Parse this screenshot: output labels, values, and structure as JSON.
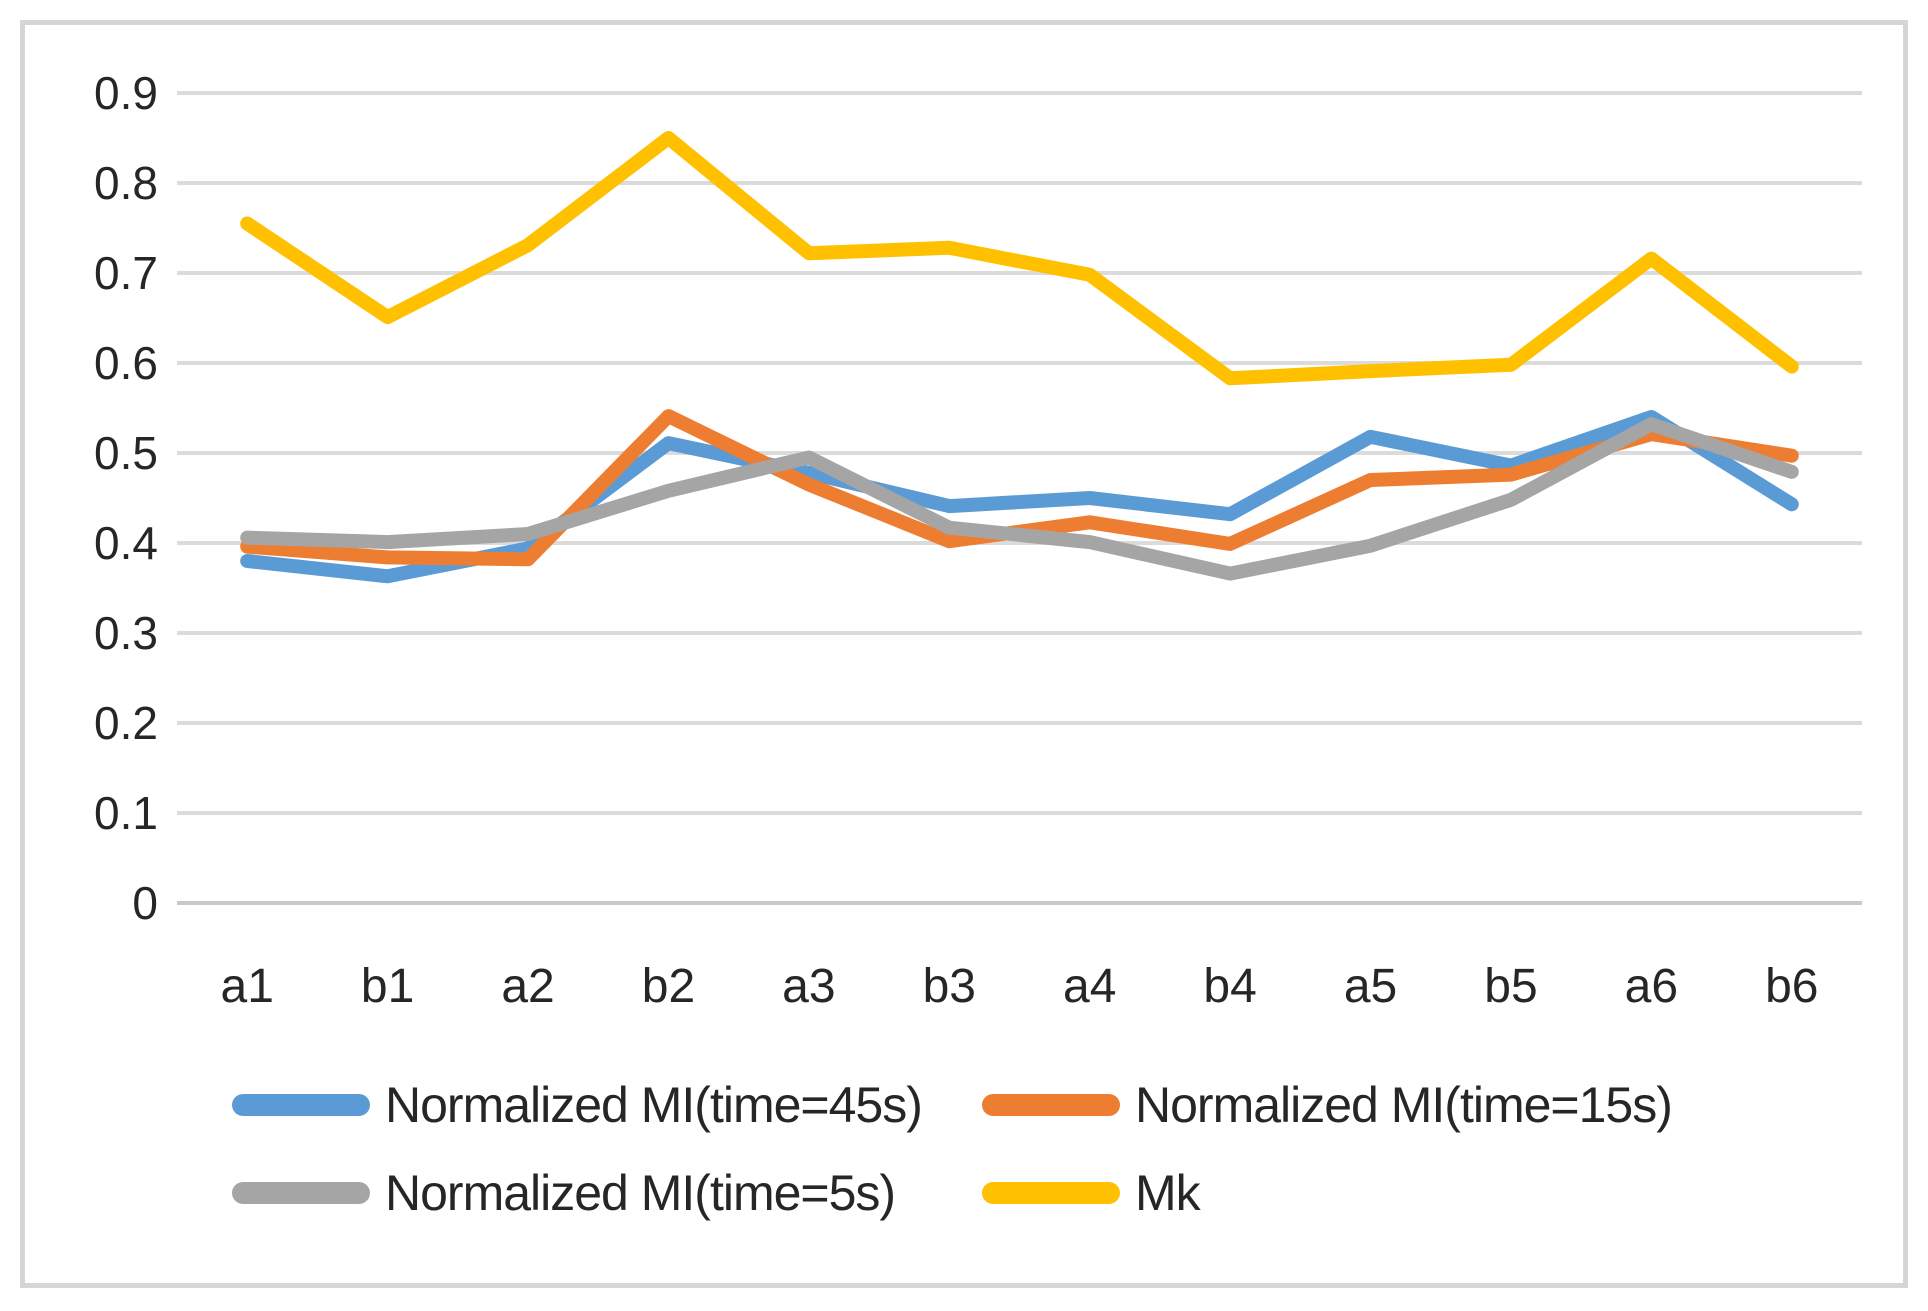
{
  "chart_data": {
    "type": "line",
    "categories": [
      "a1",
      "b1",
      "a2",
      "b2",
      "a3",
      "b3",
      "a4",
      "b4",
      "a5",
      "b5",
      "a6",
      "b6"
    ],
    "series": [
      {
        "name": "Normalized MI(time=45s)",
        "color": "#5B9BD5",
        "values": [
          0.38,
          0.363,
          0.394,
          0.511,
          0.478,
          0.441,
          0.45,
          0.432,
          0.518,
          0.486,
          0.54,
          0.443
        ]
      },
      {
        "name": "Normalized MI(time=15s)",
        "color": "#ED7D31",
        "values": [
          0.396,
          0.384,
          0.382,
          0.541,
          0.465,
          0.402,
          0.423,
          0.399,
          0.47,
          0.476,
          0.521,
          0.497
        ]
      },
      {
        "name": "Normalized MI(time=5s)",
        "color": "#A5A5A5",
        "values": [
          0.406,
          0.401,
          0.41,
          0.458,
          0.495,
          0.417,
          0.401,
          0.366,
          0.397,
          0.448,
          0.532,
          0.479
        ]
      },
      {
        "name": "Mk",
        "color": "#FFC000",
        "values": [
          0.755,
          0.651,
          0.731,
          0.85,
          0.722,
          0.728,
          0.698,
          0.583,
          0.591,
          0.598,
          0.716,
          0.596
        ]
      }
    ],
    "ylim": [
      0,
      0.9
    ],
    "ytick_step": 0.1,
    "ytick_labels": [
      "0",
      "0.1",
      "0.2",
      "0.3",
      "0.4",
      "0.5",
      "0.6",
      "0.7",
      "0.8",
      "0.9"
    ],
    "xlabel": "",
    "ylabel": "",
    "title": "",
    "grid": true,
    "legend_position": "bottom",
    "legend_rows": [
      [
        0,
        1
      ],
      [
        2,
        3
      ]
    ]
  },
  "styles": {
    "gridline_color": "#DBDBDB",
    "axis_line_color": "#C9C9C9",
    "tick_label_color": "#262626",
    "legend_text_color": "#262626",
    "figure_border_color": "#D6D6D6",
    "background": "#FFFFFF"
  }
}
